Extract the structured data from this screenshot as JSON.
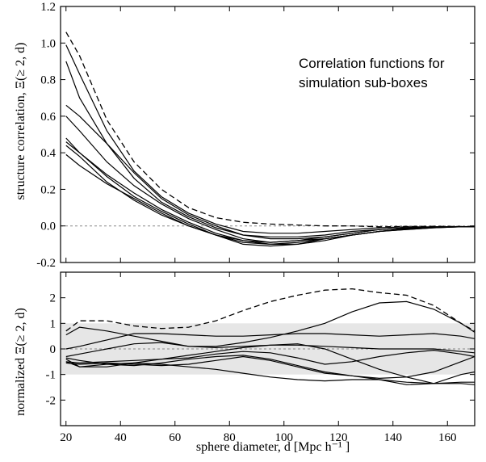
{
  "annotation": [
    "Correlation functions for",
    "simulation sub-boxes"
  ],
  "xlabel": "sphere diameter,  d [Mpc h⁻¹ ]",
  "chart_data": [
    {
      "type": "line",
      "ylabel": "structure correlation,  Ξ(≥ 2, d)",
      "xlim": [
        18,
        170
      ],
      "ylim": [
        -0.2,
        1.2
      ],
      "xticks": [
        20,
        40,
        60,
        80,
        100,
        120,
        140,
        160
      ],
      "yticks": [
        -0.2,
        0.0,
        0.2,
        0.4,
        0.6,
        0.8,
        1.0,
        1.2
      ],
      "ytick_labels": [
        "-0.2",
        "0.0",
        "0.2",
        "0.4",
        "0.6",
        "0.8",
        "1.0",
        "1.2"
      ],
      "zero_line": 0,
      "dashed_series": {
        "x": [
          20,
          25,
          35,
          45,
          55,
          65,
          75,
          85,
          95,
          105,
          115,
          125,
          135,
          145,
          155,
          165,
          170
        ],
        "y": [
          1.06,
          0.93,
          0.58,
          0.35,
          0.2,
          0.1,
          0.045,
          0.02,
          0.01,
          0.005,
          0.0,
          0.0,
          -0.005,
          -0.003,
          -0.002,
          -0.003,
          -0.005
        ]
      },
      "series": [
        {
          "x": [
            20,
            25,
            35,
            45,
            55,
            65,
            75,
            85,
            95,
            105,
            115,
            125,
            135,
            145,
            155,
            165,
            170
          ],
          "y": [
            0.99,
            0.83,
            0.52,
            0.3,
            0.16,
            0.07,
            0.01,
            -0.03,
            -0.04,
            -0.04,
            -0.03,
            -0.02,
            -0.01,
            -0.005,
            -0.005,
            -0.005,
            -0.005
          ]
        },
        {
          "x": [
            20,
            25,
            35,
            45,
            55,
            65,
            75,
            85,
            95,
            105,
            115,
            125,
            135,
            145,
            155,
            165,
            170
          ],
          "y": [
            0.9,
            0.7,
            0.45,
            0.26,
            0.13,
            0.05,
            -0.01,
            -0.05,
            -0.06,
            -0.06,
            -0.05,
            -0.03,
            -0.02,
            -0.01,
            -0.005,
            -0.005,
            -0.005
          ]
        },
        {
          "x": [
            20,
            25,
            35,
            45,
            55,
            65,
            75,
            85,
            95,
            105,
            115,
            125,
            135,
            145,
            155,
            165,
            170
          ],
          "y": [
            0.66,
            0.6,
            0.45,
            0.29,
            0.15,
            0.06,
            0.0,
            -0.05,
            -0.07,
            -0.07,
            -0.06,
            -0.04,
            -0.02,
            -0.01,
            -0.005,
            -0.005,
            -0.005
          ]
        },
        {
          "x": [
            20,
            25,
            35,
            45,
            55,
            65,
            75,
            85,
            95,
            105,
            115,
            125,
            135,
            145,
            155,
            165,
            170
          ],
          "y": [
            0.6,
            0.52,
            0.35,
            0.22,
            0.12,
            0.04,
            -0.02,
            -0.07,
            -0.09,
            -0.08,
            -0.06,
            -0.04,
            -0.02,
            -0.01,
            -0.005,
            -0.005,
            -0.005
          ]
        },
        {
          "x": [
            20,
            25,
            35,
            45,
            55,
            65,
            75,
            85,
            95,
            105,
            115,
            125,
            135,
            145,
            155,
            165,
            170
          ],
          "y": [
            0.48,
            0.4,
            0.28,
            0.18,
            0.09,
            0.02,
            -0.04,
            -0.08,
            -0.1,
            -0.1,
            -0.08,
            -0.05,
            -0.03,
            -0.015,
            -0.008,
            -0.005,
            -0.005
          ]
        },
        {
          "x": [
            20,
            25,
            35,
            45,
            55,
            65,
            75,
            85,
            95,
            105,
            115,
            125,
            135,
            145,
            155,
            165,
            170
          ],
          "y": [
            0.46,
            0.4,
            0.27,
            0.16,
            0.08,
            0.01,
            -0.05,
            -0.09,
            -0.1,
            -0.09,
            -0.07,
            -0.05,
            -0.03,
            -0.015,
            -0.008,
            -0.005,
            -0.005
          ]
        },
        {
          "x": [
            20,
            25,
            35,
            45,
            55,
            65,
            75,
            85,
            95,
            105,
            115,
            125,
            135,
            145,
            155,
            165,
            170
          ],
          "y": [
            0.44,
            0.38,
            0.24,
            0.14,
            0.06,
            0.0,
            -0.05,
            -0.1,
            -0.11,
            -0.1,
            -0.07,
            -0.05,
            -0.03,
            -0.02,
            -0.01,
            -0.005,
            -0.005
          ]
        },
        {
          "x": [
            20,
            25,
            35,
            45,
            55,
            65,
            75,
            85,
            95,
            105,
            115,
            125,
            135,
            145,
            155,
            165,
            170
          ],
          "y": [
            0.39,
            0.33,
            0.23,
            0.15,
            0.07,
            0.0,
            -0.05,
            -0.08,
            -0.09,
            -0.08,
            -0.07,
            -0.05,
            -0.03,
            -0.02,
            -0.01,
            -0.005,
            -0.005
          ]
        }
      ]
    },
    {
      "type": "line",
      "ylabel": "normalized  Ξ(≥ 2, d)",
      "xlim": [
        18,
        170
      ],
      "ylim": [
        -3,
        3
      ],
      "xticks": [
        20,
        40,
        60,
        80,
        100,
        120,
        140,
        160
      ],
      "yticks": [
        -2,
        -1,
        0,
        1,
        2
      ],
      "ytick_labels": [
        "-2",
        "-1",
        "0",
        "1",
        "2"
      ],
      "band": [
        -1,
        1
      ],
      "zero_line": 0,
      "dashed_series": {
        "x": [
          20,
          25,
          35,
          45,
          55,
          65,
          75,
          85,
          95,
          105,
          115,
          125,
          135,
          145,
          155,
          165,
          170
        ],
        "y": [
          0.7,
          1.1,
          1.1,
          0.9,
          0.8,
          0.85,
          1.1,
          1.5,
          1.85,
          2.1,
          2.3,
          2.35,
          2.2,
          2.1,
          1.7,
          1.0,
          0.7
        ]
      },
      "series": [
        {
          "x": [
            20,
            25,
            35,
            45,
            55,
            65,
            75,
            85,
            95,
            105,
            115,
            125,
            135,
            145,
            155,
            165,
            170
          ],
          "y": [
            0.55,
            0.85,
            0.7,
            0.5,
            0.3,
            0.1,
            0.1,
            0.25,
            0.45,
            0.7,
            1.0,
            1.45,
            1.8,
            1.85,
            1.55,
            1.0,
            0.65
          ]
        },
        {
          "x": [
            20,
            25,
            35,
            45,
            55,
            65,
            75,
            85,
            95,
            105,
            115,
            125,
            135,
            145,
            155,
            165,
            170
          ],
          "y": [
            0.0,
            0.1,
            0.35,
            0.6,
            0.6,
            0.55,
            0.5,
            0.5,
            0.55,
            0.6,
            0.6,
            0.55,
            0.5,
            0.55,
            0.6,
            0.5,
            0.4
          ]
        },
        {
          "x": [
            20,
            25,
            35,
            45,
            55,
            65,
            75,
            85,
            95,
            105,
            115,
            125,
            135,
            145,
            155,
            165,
            170
          ],
          "y": [
            -0.3,
            -0.2,
            0.0,
            0.2,
            0.25,
            0.1,
            0.05,
            0.1,
            0.15,
            0.15,
            0.1,
            0.05,
            0.0,
            0.0,
            0.0,
            -0.1,
            -0.15
          ]
        },
        {
          "x": [
            20,
            25,
            35,
            45,
            55,
            65,
            75,
            85,
            95,
            105,
            115,
            125,
            135,
            145,
            155,
            165,
            170
          ],
          "y": [
            -0.4,
            -0.7,
            -0.7,
            -0.55,
            -0.4,
            -0.25,
            -0.1,
            0.05,
            0.15,
            0.2,
            0.0,
            -0.4,
            -0.8,
            -1.1,
            -1.35,
            -1.0,
            -0.9
          ]
        },
        {
          "x": [
            20,
            25,
            35,
            45,
            55,
            65,
            75,
            85,
            95,
            105,
            115,
            125,
            135,
            145,
            155,
            165,
            170
          ],
          "y": [
            -0.5,
            -0.55,
            -0.5,
            -0.45,
            -0.4,
            -0.35,
            -0.2,
            -0.1,
            -0.15,
            -0.35,
            -0.6,
            -0.5,
            -0.3,
            -0.15,
            -0.05,
            -0.2,
            -0.3
          ]
        },
        {
          "x": [
            20,
            25,
            35,
            45,
            55,
            65,
            75,
            85,
            95,
            105,
            115,
            125,
            135,
            145,
            155,
            165,
            170
          ],
          "y": [
            -0.35,
            -0.45,
            -0.6,
            -0.65,
            -0.55,
            -0.4,
            -0.3,
            -0.25,
            -0.4,
            -0.65,
            -0.9,
            -1.05,
            -1.15,
            -1.1,
            -0.9,
            -0.5,
            -0.3
          ]
        },
        {
          "x": [
            20,
            25,
            35,
            45,
            55,
            65,
            75,
            85,
            95,
            105,
            115,
            125,
            135,
            145,
            155,
            165,
            170
          ],
          "y": [
            -0.55,
            -0.6,
            -0.55,
            -0.6,
            -0.65,
            -0.6,
            -0.45,
            -0.3,
            -0.45,
            -0.7,
            -0.95,
            -1.05,
            -1.2,
            -1.4,
            -1.35,
            -1.3,
            -1.3
          ]
        },
        {
          "x": [
            20,
            25,
            35,
            45,
            55,
            65,
            75,
            85,
            95,
            105,
            115,
            125,
            135,
            145,
            155,
            165,
            170
          ],
          "y": [
            -0.5,
            -0.7,
            -0.6,
            -0.55,
            -0.6,
            -0.7,
            -0.8,
            -0.95,
            -1.1,
            -1.2,
            -1.25,
            -1.2,
            -1.2,
            -1.3,
            -1.35,
            -1.35,
            -1.4
          ]
        }
      ]
    }
  ]
}
